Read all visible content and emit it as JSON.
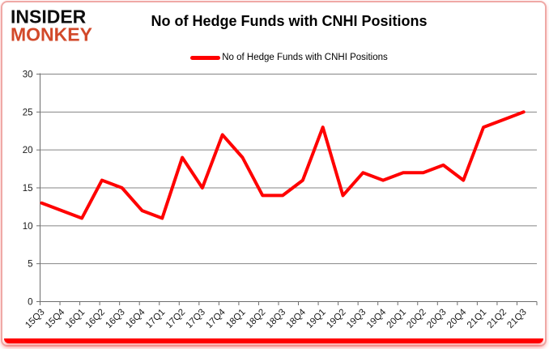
{
  "logo": {
    "line1": "INSIDER",
    "line2": "MONKEY",
    "line2_color": "#d2492a"
  },
  "header": {
    "title": "No of Hedge Funds with CNHI Positions"
  },
  "legend": {
    "label": "No of Hedge Funds with CNHI Positions",
    "swatch_color": "#ff0000"
  },
  "colors": {
    "series_line": "#ff0000",
    "gridline": "#848484",
    "axis": "#6e6e6e",
    "tick_label": "#1a1a1a",
    "card_border": "#efa9a6",
    "bottom_bar": "#ff0000"
  },
  "chart_data": {
    "type": "line",
    "title": "No of Hedge Funds with CNHI Positions",
    "categories": [
      "15Q3",
      "15Q4",
      "16Q1",
      "16Q2",
      "16Q3",
      "16Q4",
      "17Q1",
      "17Q2",
      "17Q3",
      "17Q4",
      "18Q1",
      "18Q2",
      "18Q3",
      "18Q4",
      "19Q1",
      "19Q2",
      "19Q3",
      "19Q4",
      "20Q1",
      "20Q2",
      "20Q3",
      "20Q4",
      "21Q1",
      "21Q2",
      "21Q3"
    ],
    "series": [
      {
        "name": "No of Hedge Funds with CNHI Positions",
        "color": "#ff0000",
        "values": [
          13,
          12,
          11,
          16,
          15,
          12,
          11,
          19,
          15,
          22,
          19,
          14,
          14,
          16,
          23,
          14,
          17,
          16,
          17,
          17,
          18,
          16,
          23,
          24,
          25
        ]
      }
    ],
    "xlabel": "",
    "ylabel": "",
    "ylim": [
      0,
      30
    ],
    "yticks": [
      0,
      5,
      10,
      15,
      20,
      25,
      30
    ],
    "grid": "horizontal",
    "legend_position": "top-center"
  }
}
